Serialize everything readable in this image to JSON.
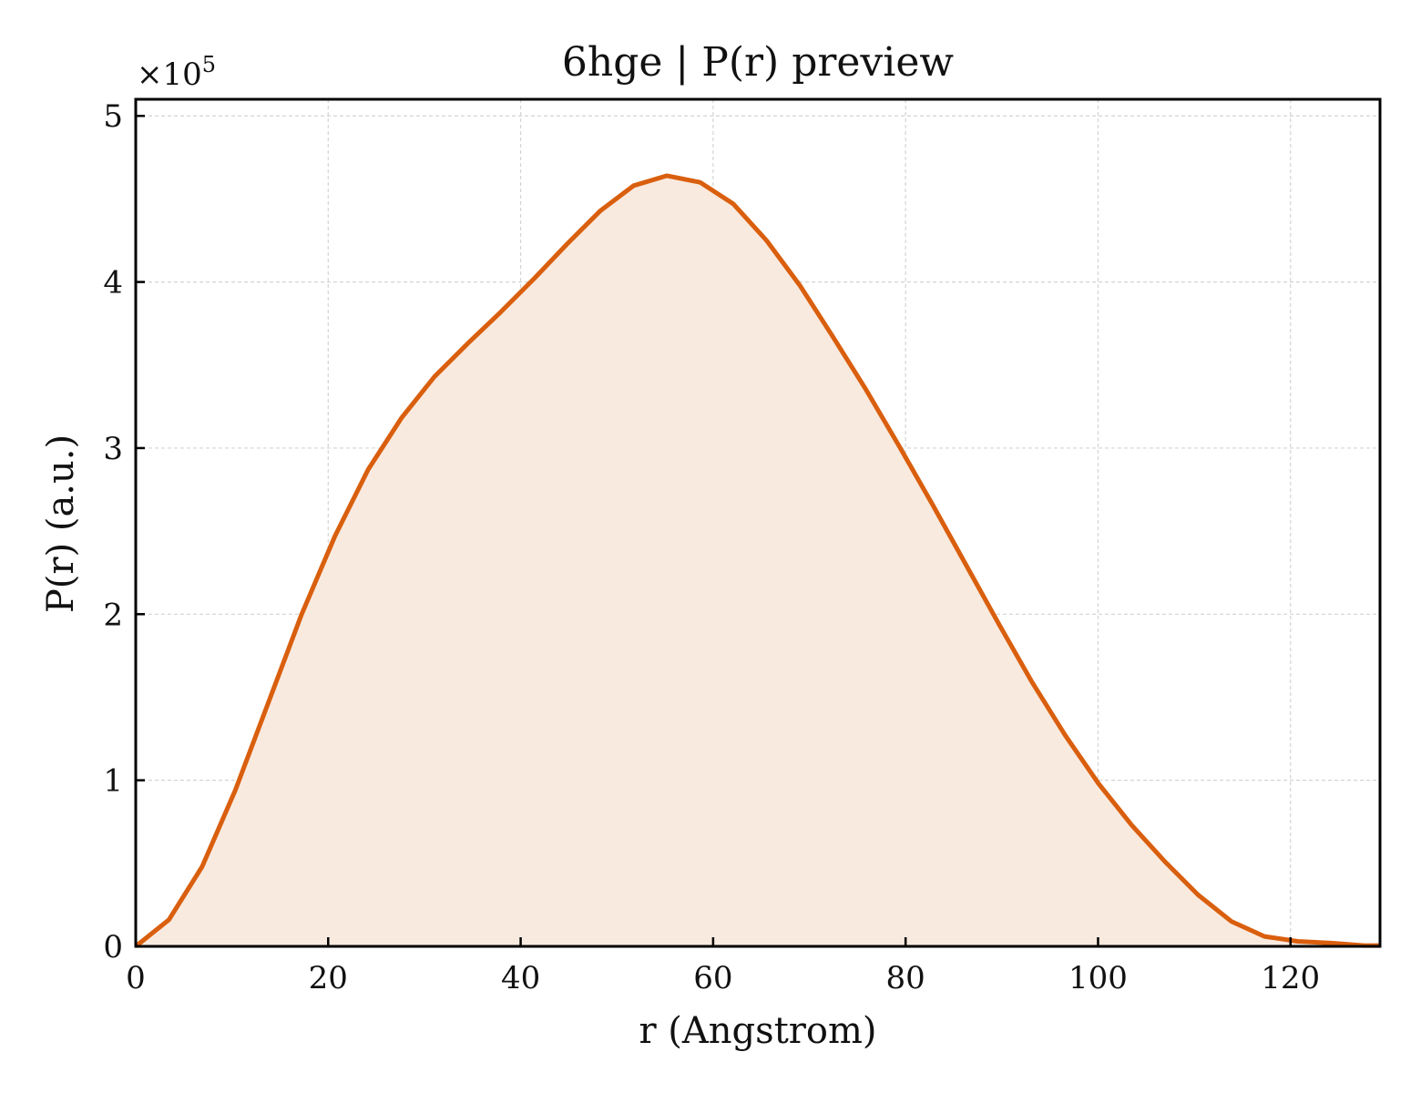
{
  "chart_data": {
    "type": "area",
    "title": "6hge | P(r) preview",
    "xlabel": "r (Angstrom)",
    "ylabel": "P(r) (a.u.)",
    "y_offset_label": {
      "base": "×10",
      "exponent": "5"
    },
    "xlim": [
      0,
      129.3
    ],
    "ylim": [
      0,
      5.1
    ],
    "y_scale_factor": 100000,
    "x_ticks": [
      0,
      20,
      40,
      60,
      80,
      100,
      120
    ],
    "y_ticks": [
      0,
      1,
      2,
      3,
      4,
      5
    ],
    "grid": true,
    "legend": "none",
    "line_color": "#d95f0e",
    "fill_color": "#f9eadf",
    "x": [
      0,
      3.45,
      6.9,
      10.35,
      13.8,
      17.25,
      20.7,
      24.15,
      27.6,
      31.05,
      34.5,
      37.95,
      41.4,
      44.85,
      48.3,
      51.75,
      55.2,
      58.65,
      62.1,
      65.55,
      69.0,
      72.45,
      75.9,
      79.35,
      82.8,
      86.25,
      89.7,
      93.15,
      96.6,
      100.05,
      103.5,
      106.95,
      110.4,
      113.85,
      117.3,
      120.75,
      124.2,
      127.65,
      129.3
    ],
    "y": [
      0.0,
      0.16,
      0.48,
      0.94,
      1.47,
      2.0,
      2.47,
      2.87,
      3.18,
      3.43,
      3.63,
      3.82,
      4.02,
      4.23,
      4.43,
      4.58,
      4.64,
      4.6,
      4.47,
      4.25,
      3.98,
      3.67,
      3.35,
      3.01,
      2.66,
      2.3,
      1.94,
      1.59,
      1.27,
      0.98,
      0.73,
      0.51,
      0.31,
      0.15,
      0.06,
      0.03,
      0.02,
      0.005,
      0.005
    ]
  }
}
